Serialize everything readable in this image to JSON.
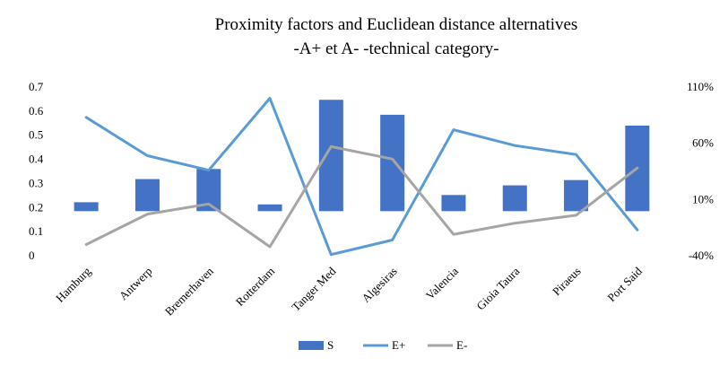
{
  "chart_data": {
    "type": "bar+line",
    "title_line1": "Proximity factors and  Euclidean distance alternatives",
    "title_line2": "-A+ et A- -technical category-",
    "categories": [
      "Hamburg",
      "Antwerp",
      "Bremerhaven",
      "Rotterdam",
      "Tanger Med",
      "Algesiras",
      "Valencia",
      "Gioia Taura",
      "Piraeus",
      "Port Said"
    ],
    "left_axis": {
      "min": 0,
      "max": 0.7,
      "step": 0.1,
      "tick_labels": [
        "0",
        "0.1",
        "0.2",
        "0.3",
        "0.4",
        "0.5",
        "0.6",
        "0.7"
      ]
    },
    "right_axis": {
      "min": -40,
      "max": 110,
      "step": 50,
      "tick_labels": [
        "-40%",
        "10%",
        "60%",
        "110%"
      ]
    },
    "bar_baseline": 0.185,
    "series": [
      {
        "name": "S",
        "kind": "bar",
        "axis": "left",
        "color": "#4472C4",
        "values": [
          0.222,
          0.318,
          0.36,
          0.213,
          0.647,
          0.585,
          0.252,
          0.292,
          0.314,
          0.54
        ]
      },
      {
        "name": "E+",
        "kind": "line",
        "axis": "right",
        "color": "#5B9BD5",
        "values": [
          83,
          49,
          36,
          100,
          -39,
          -26,
          72,
          58,
          50,
          -17
        ]
      },
      {
        "name": "E-",
        "kind": "line",
        "axis": "right",
        "color": "#A5A5A5",
        "values": [
          -30,
          -3,
          6,
          -32,
          57,
          46,
          -21,
          -11,
          -4,
          38
        ]
      }
    ]
  }
}
